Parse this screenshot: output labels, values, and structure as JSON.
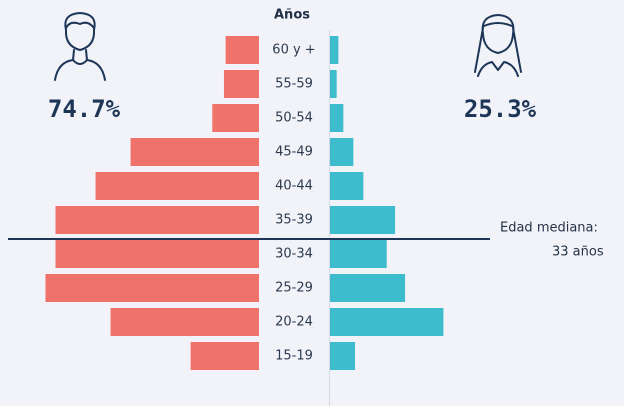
{
  "chart_data": {
    "type": "pyramid",
    "title": "Años",
    "categories": [
      "60 y +",
      "55-59",
      "50-54",
      "45-49",
      "40-44",
      "35-39",
      "30-34",
      "25-29",
      "20-24",
      "15-19"
    ],
    "series": [
      {
        "color": "#f0736b",
        "side": "left",
        "values": [
          2.0,
          2.1,
          2.8,
          7.7,
          9.8,
          12.2,
          12.2,
          12.8,
          8.9,
          4.1
        ]
      },
      {
        "color": "#3dbcce",
        "side": "right",
        "values": [
          0.5,
          0.4,
          0.8,
          1.4,
          2.0,
          3.9,
          3.4,
          4.5,
          6.8,
          1.5
        ]
      }
    ],
    "totals": [
      {
        "value": 74.7,
        "label": "74.7%"
      },
      {
        "value": 25.3,
        "label": "25.3%"
      }
    ],
    "median_label": "Edad mediana:",
    "median_value": {
      "value": 33,
      "label": "33 años"
    }
  }
}
